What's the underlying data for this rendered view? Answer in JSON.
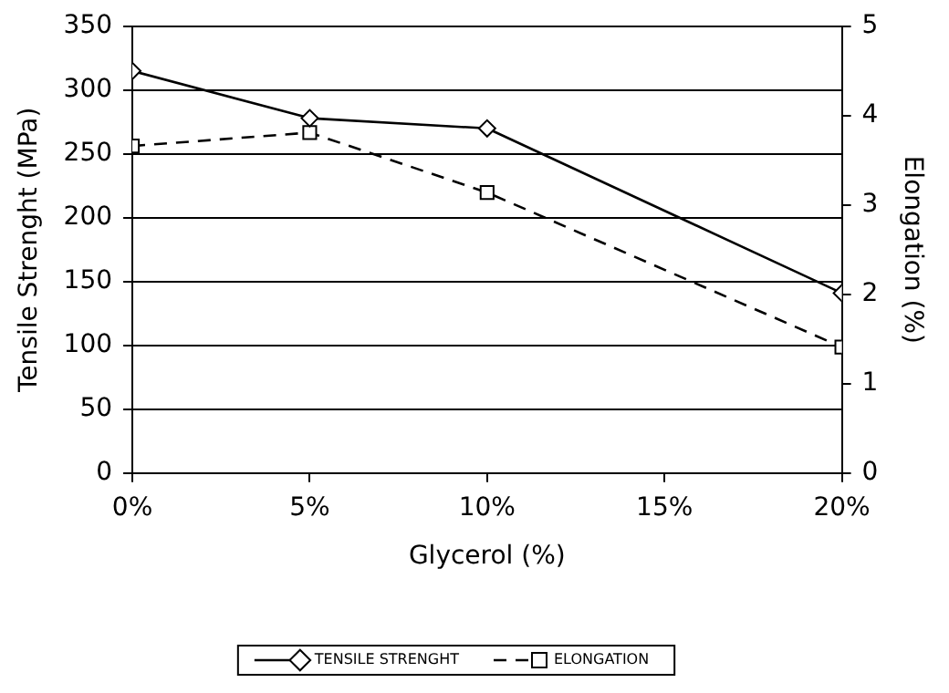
{
  "chart_data": {
    "type": "line",
    "xlabel": "Glycerol (%)",
    "ylabel": "Tensile Strenght (MPa)",
    "y2label": "Elongation (%)",
    "x": [
      0,
      5,
      10,
      20
    ],
    "series": [
      {
        "name": "TENSILE STRENGHT",
        "color": "#000000",
        "values": [
          315,
          278,
          270,
          141
        ],
        "marker": "diamond",
        "line_style": "solid"
      },
      {
        "name": "ELONGATION",
        "color": "#000000",
        "values": [
          3.66,
          3.81,
          3.14,
          1.41
        ],
        "marker": "square",
        "line_style": "dashed",
        "axis": "y2"
      }
    ],
    "xlim": [
      0,
      20
    ],
    "xticks": [
      {
        "value": 0,
        "label": "0%"
      },
      {
        "value": 5,
        "label": "5%"
      },
      {
        "value": 10,
        "label": "10%"
      },
      {
        "value": 15,
        "label": "15%"
      },
      {
        "value": 20,
        "label": "20%"
      }
    ],
    "ylim": [
      0,
      350
    ],
    "yticks": [
      0,
      50,
      100,
      150,
      200,
      250,
      300,
      350
    ],
    "y2lim": [
      0,
      5
    ],
    "y2ticks": [
      0,
      1,
      2,
      3,
      4,
      5
    ],
    "grid": "y",
    "legend": "bottom"
  }
}
